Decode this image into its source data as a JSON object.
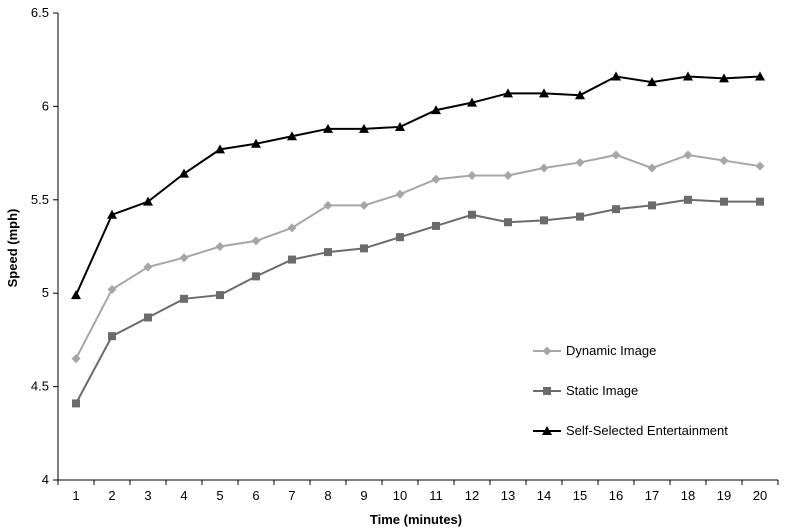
{
  "chart_data": {
    "type": "line",
    "xlabel": "Time (minutes)",
    "ylabel": "Speed (mph)",
    "x": [
      1,
      2,
      3,
      4,
      5,
      6,
      7,
      8,
      9,
      10,
      11,
      12,
      13,
      14,
      15,
      16,
      17,
      18,
      19,
      20
    ],
    "ylim": [
      4,
      6.5
    ],
    "yticks": [
      "4",
      "4.5",
      "5",
      "5.5",
      "6",
      "6.5"
    ],
    "grid": false,
    "legend_position": "right",
    "series": [
      {
        "name": "Dynamic Image",
        "marker": "diamond",
        "color": "#a6a6a6",
        "values": [
          4.65,
          5.02,
          5.14,
          5.19,
          5.25,
          5.28,
          5.35,
          5.47,
          5.47,
          5.53,
          5.61,
          5.63,
          5.63,
          5.67,
          5.7,
          5.74,
          5.67,
          5.74,
          5.71,
          5.68
        ]
      },
      {
        "name": "Static Image",
        "marker": "square",
        "color": "#6b6b6b",
        "values": [
          4.41,
          4.77,
          4.87,
          4.97,
          4.99,
          5.09,
          5.18,
          5.22,
          5.24,
          5.3,
          5.36,
          5.42,
          5.38,
          5.39,
          5.41,
          5.45,
          5.47,
          5.5,
          5.49,
          5.49
        ]
      },
      {
        "name": "Self-Selected Entertainment",
        "marker": "triangle",
        "color": "#000000",
        "values": [
          4.99,
          5.42,
          5.49,
          5.64,
          5.77,
          5.8,
          5.84,
          5.88,
          5.88,
          5.89,
          5.98,
          6.02,
          6.07,
          6.07,
          6.06,
          6.16,
          6.13,
          6.16,
          6.15,
          6.16
        ]
      }
    ]
  }
}
